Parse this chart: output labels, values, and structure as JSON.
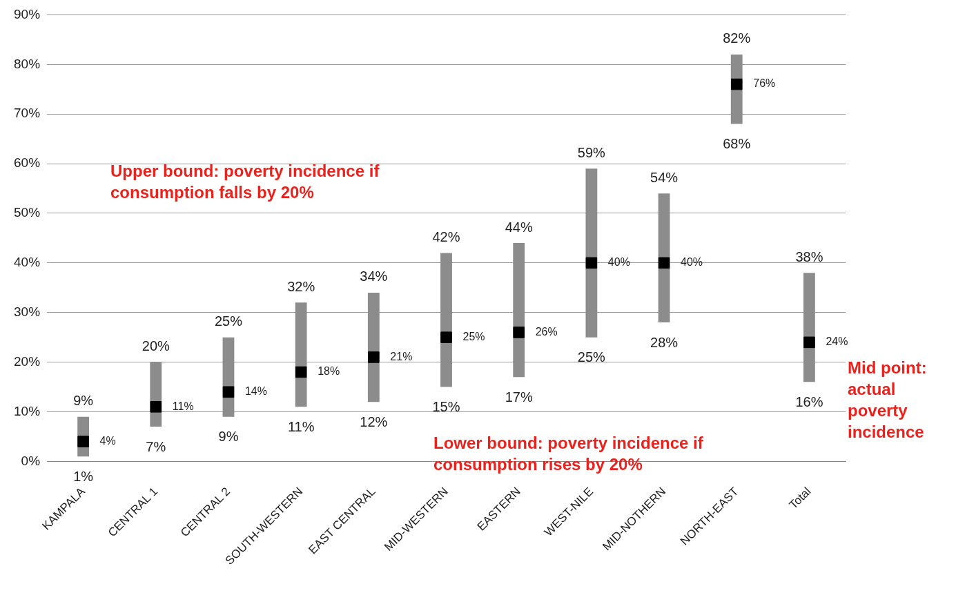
{
  "chart_data": {
    "type": "bar",
    "categories": [
      "KAMPALA",
      "CENTRAL 1",
      "CENTRAL 2",
      "SOUTH-WESTERN",
      "EAST CENTRAL",
      "MID-WESTERN",
      "EASTERN",
      "WEST-NILE",
      "MID-NOTHERN",
      "NORTH-EAST",
      "Total"
    ],
    "series": [
      {
        "type": "bar",
        "color": "#8c8c8c",
        "base": [
          1,
          7,
          9,
          11,
          12,
          15,
          17,
          25,
          28,
          68,
          16
        ],
        "values": [
          8,
          13,
          16,
          21,
          22,
          27,
          27,
          34,
          26,
          14,
          22
        ]
      },
      {
        "type": "scatter",
        "color": "#000000",
        "marker": "square",
        "values": [
          4,
          11,
          14,
          18,
          21,
          25,
          26,
          40,
          40,
          76,
          24
        ],
        "value_labels": [
          "4%",
          "11%",
          "14%",
          "18%",
          "21%",
          "25%",
          "26%",
          "40%",
          "40%",
          "76%",
          "24%"
        ]
      }
    ],
    "ylim": [
      0,
      90
    ],
    "yticks": [
      {
        "value": 0,
        "label": "0%"
      },
      {
        "value": 10,
        "label": "10%"
      },
      {
        "value": 20,
        "label": "20%"
      },
      {
        "value": 30,
        "label": "30%"
      },
      {
        "value": 40,
        "label": "40%"
      },
      {
        "value": 50,
        "label": "50%"
      },
      {
        "value": 60,
        "label": "60%"
      },
      {
        "value": 70,
        "label": "70%"
      },
      {
        "value": 80,
        "label": "80%"
      },
      {
        "value": 90,
        "label": "90%"
      }
    ],
    "grid": "y",
    "legend": false,
    "annotations": [
      {
        "text": "9%",
        "x": "KAMPALA",
        "y": 9
      },
      {
        "text": "1%",
        "x": "KAMPALA",
        "y": 1
      },
      {
        "text": "20%",
        "x": "CENTRAL 1",
        "y": 20
      },
      {
        "text": "7%",
        "x": "CENTRAL 1",
        "y": 7
      },
      {
        "text": "25%",
        "x": "CENTRAL 2",
        "y": 25
      },
      {
        "text": "9%",
        "x": "CENTRAL 2",
        "y": 9
      },
      {
        "text": "32%",
        "x": "SOUTH-WESTERN",
        "y": 32
      },
      {
        "text": "11%",
        "x": "SOUTH-WESTERN",
        "y": 11
      },
      {
        "text": "34%",
        "x": "EAST CENTRAL",
        "y": 34
      },
      {
        "text": "12%",
        "x": "EAST CENTRAL",
        "y": 12
      },
      {
        "text": "42%",
        "x": "MID-WESTERN",
        "y": 42
      },
      {
        "text": "15%",
        "x": "MID-WESTERN",
        "y": 15
      },
      {
        "text": "44%",
        "x": "EASTERN",
        "y": 44
      },
      {
        "text": "17%",
        "x": "EASTERN",
        "y": 17
      },
      {
        "text": "59%",
        "x": "WEST-NILE",
        "y": 59
      },
      {
        "text": "25%",
        "x": "WEST-NILE",
        "y": 25
      },
      {
        "text": "54%",
        "x": "MID-NOTHERN",
        "y": 54
      },
      {
        "text": "28%",
        "x": "MID-NOTHERN",
        "y": 28
      },
      {
        "text": "82%",
        "x": "NORTH-EAST",
        "y": 82
      },
      {
        "text": "68%",
        "x": "NORTH-EAST",
        "y": 68
      },
      {
        "text": "38%",
        "x": "Total",
        "y": 38
      },
      {
        "text": "16%",
        "x": "Total",
        "y": 16
      },
      "Upper bound: poverty incidence if consumption falls by 20%",
      "Lower bound: poverty incidence if consumption rises by 20%",
      "Mid point: actual poverty incidence"
    ]
  }
}
